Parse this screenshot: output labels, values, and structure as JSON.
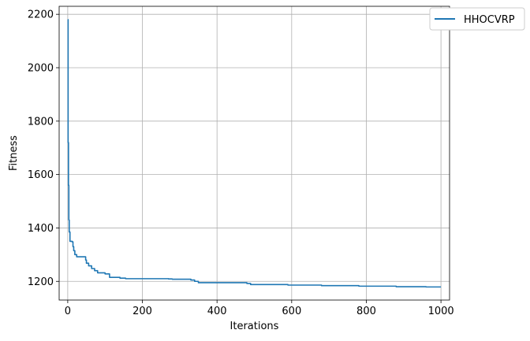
{
  "chart_data": {
    "type": "line",
    "xlabel": "Iterations",
    "ylabel": "Fitness",
    "xlim": [
      -23,
      1023
    ],
    "ylim": [
      1130,
      2230
    ],
    "xticks": [
      0,
      200,
      400,
      600,
      800,
      1000
    ],
    "yticks": [
      1200,
      1400,
      1600,
      1800,
      2000,
      2200
    ],
    "grid": true,
    "legend": "top-right, outside",
    "series": [
      {
        "name": "HHOCVRP",
        "color": "#1f77b4",
        "step": true,
        "points": [
          [
            0,
            2180
          ],
          [
            1,
            1720
          ],
          [
            2,
            1560
          ],
          [
            3,
            1430
          ],
          [
            4,
            1385
          ],
          [
            6,
            1350
          ],
          [
            12,
            1348
          ],
          [
            14,
            1330
          ],
          [
            16,
            1315
          ],
          [
            19,
            1300
          ],
          [
            24,
            1292
          ],
          [
            48,
            1280
          ],
          [
            50,
            1268
          ],
          [
            56,
            1258
          ],
          [
            64,
            1248
          ],
          [
            72,
            1240
          ],
          [
            80,
            1232
          ],
          [
            100,
            1228
          ],
          [
            112,
            1215
          ],
          [
            140,
            1212
          ],
          [
            155,
            1210
          ],
          [
            270,
            1209
          ],
          [
            280,
            1208
          ],
          [
            330,
            1205
          ],
          [
            340,
            1200
          ],
          [
            350,
            1195
          ],
          [
            480,
            1192
          ],
          [
            490,
            1188
          ],
          [
            590,
            1186
          ],
          [
            680,
            1184
          ],
          [
            780,
            1182
          ],
          [
            880,
            1180
          ],
          [
            960,
            1179
          ],
          [
            1000,
            1179
          ]
        ]
      }
    ]
  }
}
